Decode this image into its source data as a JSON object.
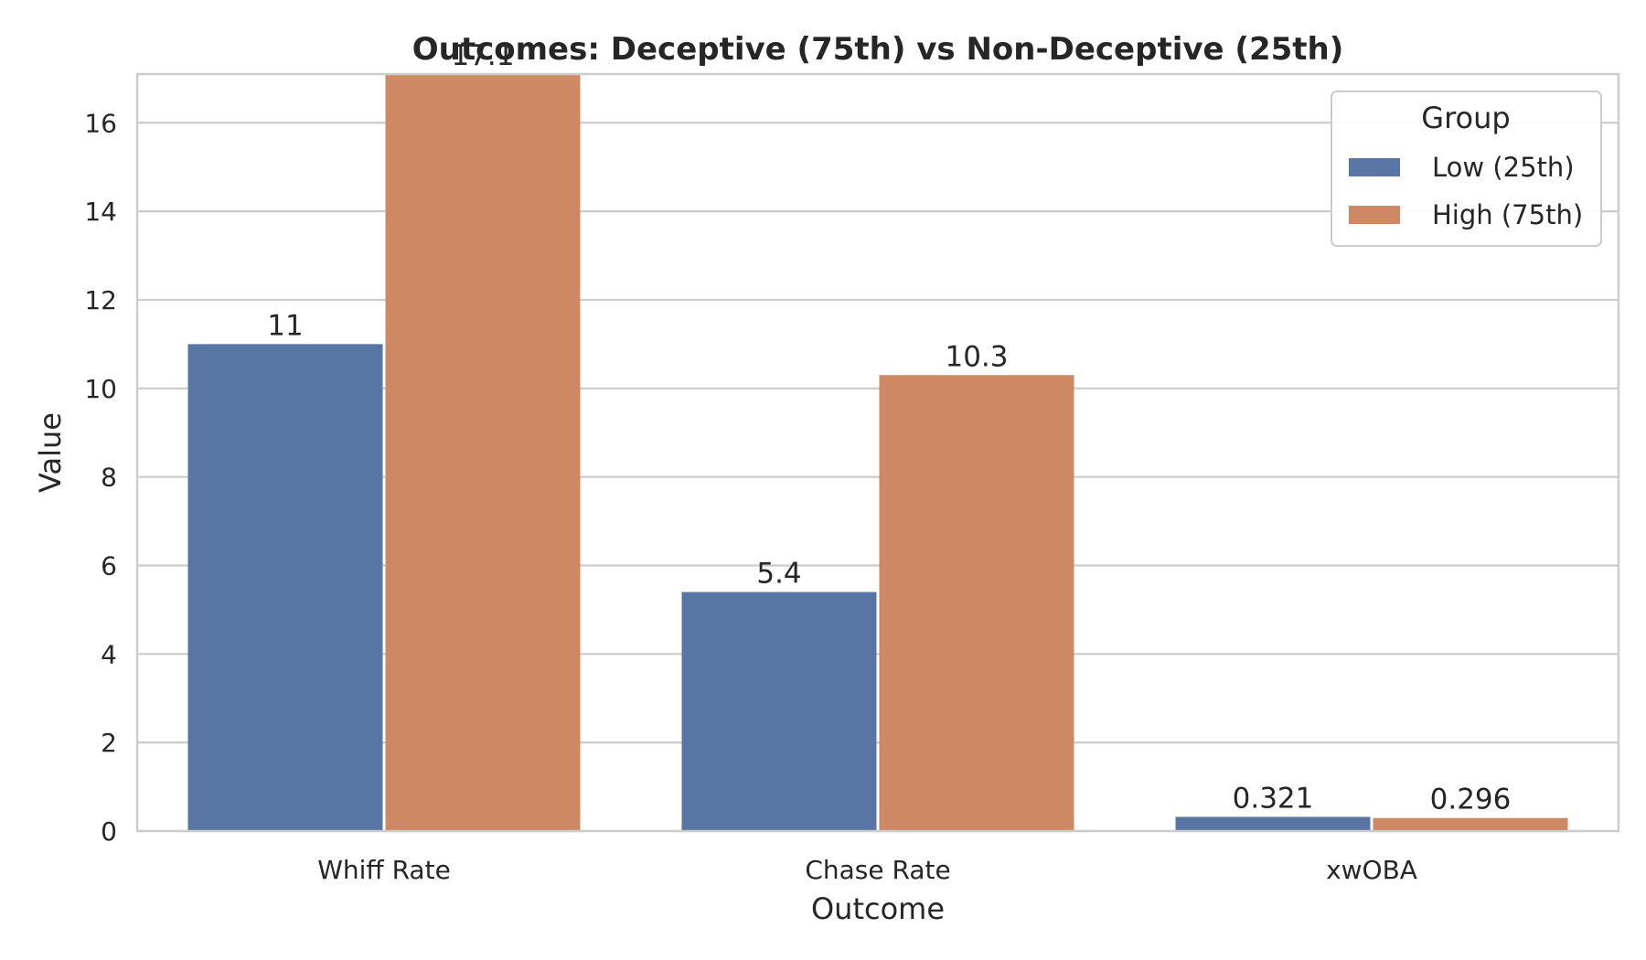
{
  "chart_data": {
    "type": "bar",
    "title": "Outcomes: Deceptive (75th) vs Non-Deceptive (25th)",
    "xlabel": "Outcome",
    "ylabel": "Value",
    "categories": [
      "Whiff Rate",
      "Chase Rate",
      "xwOBA"
    ],
    "series": [
      {
        "name": "Low (25th)",
        "values": [
          11,
          5.4,
          0.321
        ],
        "labels": [
          "11",
          "5.4",
          "0.321"
        ],
        "color": "#5975a4"
      },
      {
        "name": "High (75th)",
        "values": [
          17.1,
          10.3,
          0.296
        ],
        "labels": [
          "17.1",
          "10.3",
          "0.296"
        ],
        "color": "#cc8963"
      }
    ],
    "ylim": [
      0,
      17.1
    ],
    "yticks": [
      0,
      2,
      4,
      6,
      8,
      10,
      12,
      14,
      16
    ],
    "grid": true,
    "legend": {
      "title": "Group",
      "placement": "top-right"
    }
  }
}
